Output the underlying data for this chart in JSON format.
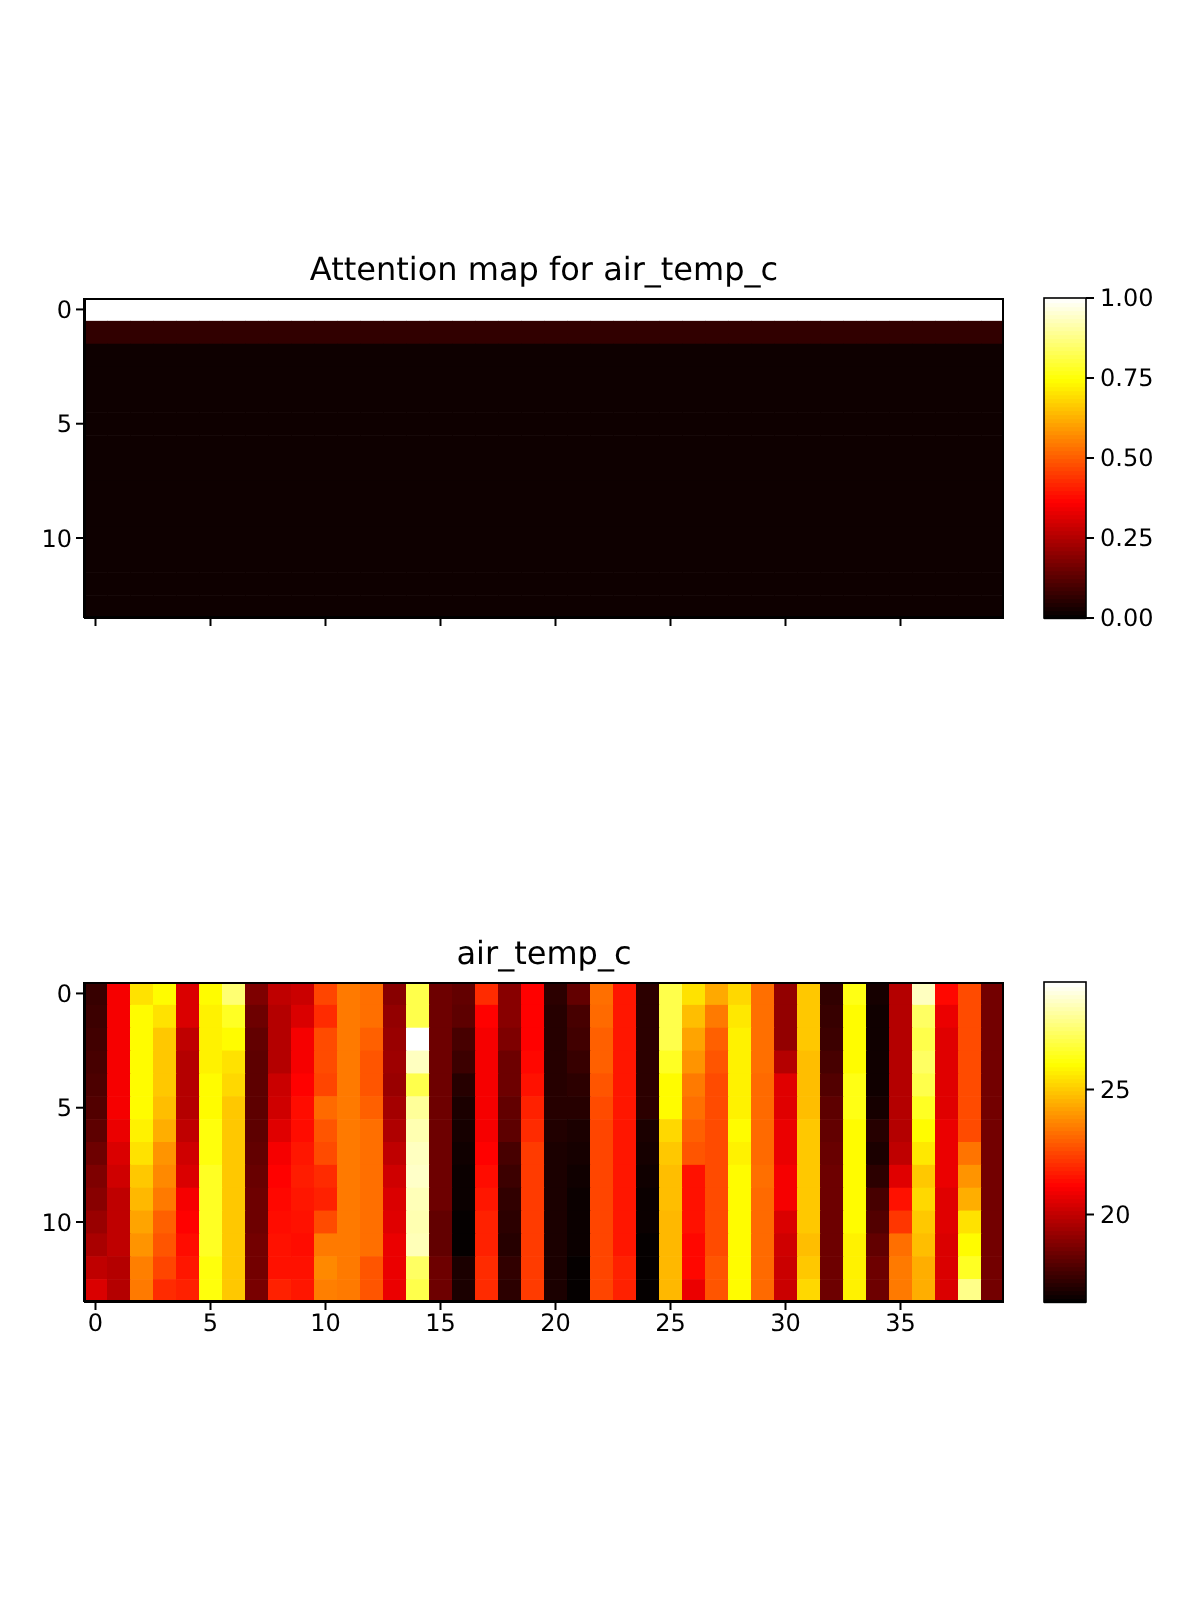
{
  "chart_data": [
    {
      "type": "heatmap",
      "title": "Attention map for air_temp_c",
      "categories": [
        "0",
        null,
        null,
        null,
        null,
        "5",
        null,
        null,
        null,
        null,
        "10",
        null,
        null,
        null,
        null,
        "15",
        null,
        null,
        null,
        null,
        "20",
        null,
        null,
        null,
        null,
        "25",
        null,
        null,
        null,
        null,
        "30",
        null,
        null,
        null,
        null,
        "35",
        null,
        null,
        null,
        null
      ],
      "y_categories": [
        "0",
        null,
        null,
        null,
        null,
        "5",
        null,
        null,
        null,
        null,
        "10",
        null,
        null,
        null
      ],
      "tick_labels": "y",
      "clim": [
        0,
        1
      ],
      "cticks": [
        {
          "value": 0,
          "label": "0.00"
        },
        {
          "value": 0.25,
          "label": "0.25"
        },
        {
          "value": 0.5,
          "label": "0.50"
        },
        {
          "value": 0.75,
          "label": "0.75"
        },
        {
          "value": 1,
          "label": "1.00"
        }
      ],
      "cells": [
        [
          1,
          1,
          1,
          1,
          1,
          1,
          1,
          1,
          1,
          1,
          1,
          1,
          1,
          1,
          1,
          1,
          1,
          1,
          1,
          1,
          1,
          1,
          1,
          1,
          1,
          1,
          1,
          1,
          1,
          1,
          1,
          1,
          1,
          1,
          1,
          1,
          1,
          1,
          1,
          1
        ],
        [
          0.07,
          0.07,
          0.07,
          0.07,
          0.07,
          0.07,
          0.07,
          0.07,
          0.07,
          0.07,
          0.07,
          0.07,
          0.07,
          0.07,
          0.07,
          0.07,
          0.07,
          0.07,
          0.07,
          0.07,
          0.07,
          0.07,
          0.07,
          0.07,
          0.07,
          0.07,
          0.07,
          0.07,
          0.07,
          0.07,
          0.07,
          0.07,
          0.07,
          0.07,
          0.07,
          0.07,
          0.07,
          0.07,
          0.07,
          0.07
        ],
        [
          0.02,
          0.02,
          0.02,
          0.02,
          0.02,
          0.02,
          0.02,
          0.02,
          0.02,
          0.02,
          0.02,
          0.02,
          0.02,
          0.02,
          0.02,
          0.02,
          0.02,
          0.02,
          0.02,
          0.02,
          0.02,
          0.02,
          0.02,
          0.02,
          0.02,
          0.02,
          0.02,
          0.02,
          0.02,
          0.02,
          0.02,
          0.02,
          0.02,
          0.02,
          0.02,
          0.02,
          0.02,
          0.02,
          0.02,
          0.02
        ],
        [
          0.02,
          0.02,
          0.02,
          0.02,
          0.02,
          0.02,
          0.02,
          0.02,
          0.02,
          0.02,
          0.02,
          0.02,
          0.02,
          0.02,
          0.02,
          0.02,
          0.02,
          0.02,
          0.02,
          0.02,
          0.02,
          0.02,
          0.02,
          0.02,
          0.02,
          0.02,
          0.02,
          0.02,
          0.02,
          0.02,
          0.02,
          0.02,
          0.02,
          0.02,
          0.02,
          0.02,
          0.02,
          0.02,
          0.02,
          0.02
        ],
        [
          0.02,
          0.02,
          0.02,
          0.02,
          0.02,
          0.02,
          0.02,
          0.02,
          0.02,
          0.02,
          0.02,
          0.02,
          0.02,
          0.02,
          0.02,
          0.02,
          0.02,
          0.02,
          0.02,
          0.02,
          0.02,
          0.02,
          0.02,
          0.02,
          0.02,
          0.02,
          0.02,
          0.02,
          0.02,
          0.02,
          0.02,
          0.02,
          0.02,
          0.02,
          0.02,
          0.02,
          0.02,
          0.02,
          0.02,
          0.02
        ],
        [
          0.02,
          0.02,
          0.02,
          0.02,
          0.02,
          0.02,
          0.02,
          0.02,
          0.02,
          0.02,
          0.02,
          0.02,
          0.02,
          0.02,
          0.02,
          0.02,
          0.02,
          0.02,
          0.02,
          0.02,
          0.02,
          0.02,
          0.02,
          0.02,
          0.02,
          0.02,
          0.02,
          0.02,
          0.02,
          0.02,
          0.02,
          0.02,
          0.02,
          0.02,
          0.02,
          0.02,
          0.02,
          0.02,
          0.02,
          0.02
        ],
        [
          0.02,
          0.02,
          0.02,
          0.02,
          0.02,
          0.02,
          0.02,
          0.02,
          0.02,
          0.02,
          0.02,
          0.02,
          0.02,
          0.02,
          0.02,
          0.02,
          0.02,
          0.02,
          0.02,
          0.02,
          0.02,
          0.02,
          0.02,
          0.02,
          0.02,
          0.02,
          0.02,
          0.02,
          0.02,
          0.02,
          0.02,
          0.02,
          0.02,
          0.02,
          0.02,
          0.02,
          0.02,
          0.02,
          0.02,
          0.02
        ],
        [
          0.02,
          0.02,
          0.02,
          0.02,
          0.02,
          0.02,
          0.02,
          0.02,
          0.02,
          0.02,
          0.02,
          0.02,
          0.02,
          0.02,
          0.02,
          0.02,
          0.02,
          0.02,
          0.02,
          0.02,
          0.02,
          0.02,
          0.02,
          0.02,
          0.02,
          0.02,
          0.02,
          0.02,
          0.02,
          0.02,
          0.02,
          0.02,
          0.02,
          0.02,
          0.02,
          0.02,
          0.02,
          0.02,
          0.02,
          0.02
        ],
        [
          0.02,
          0.02,
          0.02,
          0.02,
          0.02,
          0.02,
          0.02,
          0.02,
          0.02,
          0.02,
          0.02,
          0.02,
          0.02,
          0.02,
          0.02,
          0.02,
          0.02,
          0.02,
          0.02,
          0.02,
          0.02,
          0.02,
          0.02,
          0.02,
          0.02,
          0.02,
          0.02,
          0.02,
          0.02,
          0.02,
          0.02,
          0.02,
          0.02,
          0.02,
          0.02,
          0.02,
          0.02,
          0.02,
          0.02,
          0.02
        ],
        [
          0.02,
          0.02,
          0.02,
          0.02,
          0.02,
          0.02,
          0.02,
          0.02,
          0.02,
          0.02,
          0.02,
          0.02,
          0.02,
          0.02,
          0.02,
          0.02,
          0.02,
          0.02,
          0.02,
          0.02,
          0.02,
          0.02,
          0.02,
          0.02,
          0.02,
          0.02,
          0.02,
          0.02,
          0.02,
          0.02,
          0.02,
          0.02,
          0.02,
          0.02,
          0.02,
          0.02,
          0.02,
          0.02,
          0.02,
          0.02
        ],
        [
          0.02,
          0.02,
          0.02,
          0.02,
          0.02,
          0.02,
          0.02,
          0.02,
          0.02,
          0.02,
          0.02,
          0.02,
          0.02,
          0.02,
          0.02,
          0.02,
          0.02,
          0.02,
          0.02,
          0.02,
          0.02,
          0.02,
          0.02,
          0.02,
          0.02,
          0.02,
          0.02,
          0.02,
          0.02,
          0.02,
          0.02,
          0.02,
          0.02,
          0.02,
          0.02,
          0.02,
          0.02,
          0.02,
          0.02,
          0.02
        ],
        [
          0.02,
          0.02,
          0.02,
          0.02,
          0.02,
          0.02,
          0.02,
          0.02,
          0.02,
          0.02,
          0.02,
          0.02,
          0.02,
          0.02,
          0.02,
          0.02,
          0.02,
          0.02,
          0.02,
          0.02,
          0.02,
          0.02,
          0.02,
          0.02,
          0.02,
          0.02,
          0.02,
          0.02,
          0.02,
          0.02,
          0.02,
          0.02,
          0.02,
          0.02,
          0.02,
          0.02,
          0.02,
          0.02,
          0.02,
          0.02
        ],
        [
          0.02,
          0.02,
          0.02,
          0.02,
          0.02,
          0.02,
          0.02,
          0.02,
          0.02,
          0.02,
          0.02,
          0.02,
          0.02,
          0.02,
          0.02,
          0.02,
          0.02,
          0.02,
          0.02,
          0.02,
          0.02,
          0.02,
          0.02,
          0.02,
          0.02,
          0.02,
          0.02,
          0.02,
          0.02,
          0.02,
          0.02,
          0.02,
          0.02,
          0.02,
          0.02,
          0.02,
          0.02,
          0.02,
          0.02,
          0.02
        ],
        [
          0.02,
          0.02,
          0.02,
          0.02,
          0.02,
          0.02,
          0.02,
          0.02,
          0.02,
          0.02,
          0.02,
          0.02,
          0.02,
          0.02,
          0.02,
          0.02,
          0.02,
          0.02,
          0.02,
          0.02,
          0.02,
          0.02,
          0.02,
          0.02,
          0.02,
          0.02,
          0.02,
          0.02,
          0.02,
          0.02,
          0.02,
          0.02,
          0.02,
          0.02,
          0.02,
          0.02,
          0.02,
          0.02,
          0.02,
          0.02
        ]
      ]
    },
    {
      "type": "heatmap",
      "title": "air_temp_c",
      "categories": [
        "0",
        null,
        null,
        null,
        null,
        "5",
        null,
        null,
        null,
        null,
        "10",
        null,
        null,
        null,
        null,
        "15",
        null,
        null,
        null,
        null,
        "20",
        null,
        null,
        null,
        null,
        "25",
        null,
        null,
        null,
        null,
        "30",
        null,
        null,
        null,
        null,
        "35",
        null,
        null,
        null,
        null
      ],
      "y_categories": [
        "0",
        null,
        null,
        null,
        null,
        "5",
        null,
        null,
        null,
        null,
        "10",
        null,
        null,
        null
      ],
      "clim": [
        16.5,
        29.3
      ],
      "cticks": [
        20,
        25
      ],
      "cells": [
        [
          17.5,
          21,
          25.5,
          26,
          20.5,
          26,
          27.5,
          18.8,
          20,
          20.2,
          22.5,
          23.5,
          23.3,
          19,
          27,
          18.5,
          18.3,
          22,
          19,
          21.2,
          17.3,
          18.3,
          23.3,
          21.6,
          17.3,
          27,
          25.5,
          24.4,
          25.3,
          23.3,
          19.2,
          25,
          17.4,
          26.3,
          16.9,
          19.8,
          28.5,
          21.3,
          22.6,
          18.6
        ],
        [
          17.6,
          21,
          26,
          25.5,
          20.5,
          25.8,
          26.5,
          18.5,
          19.8,
          20.5,
          22,
          23.5,
          23.3,
          19.2,
          27,
          18.5,
          18.2,
          21.2,
          19,
          21.2,
          17.2,
          17.8,
          23.2,
          21.6,
          17.3,
          27,
          24.8,
          23.5,
          25.6,
          23.3,
          19.2,
          25,
          17.5,
          26,
          16.8,
          19.8,
          27.3,
          20.8,
          22.6,
          18.6
        ],
        [
          17.7,
          21,
          26,
          25,
          20,
          25.8,
          26,
          18.3,
          19.8,
          21,
          22.6,
          23.5,
          23,
          19.3,
          29.3,
          18.5,
          17.8,
          21,
          18.8,
          21.2,
          17.2,
          17.7,
          23,
          21.6,
          17.3,
          27,
          24.3,
          23,
          25.8,
          23.3,
          19.2,
          25,
          17.6,
          26,
          16.8,
          19.8,
          27,
          20.6,
          22.6,
          18.6
        ],
        [
          17.8,
          21,
          26,
          25,
          19.8,
          25.8,
          25.5,
          18.2,
          19.8,
          21,
          22.6,
          23.5,
          22.8,
          19.4,
          28.5,
          18.5,
          17.6,
          21,
          18.5,
          21.3,
          17.2,
          17.5,
          23,
          21.6,
          17.3,
          26.5,
          24,
          22.8,
          25.8,
          23.3,
          19.8,
          24.8,
          17.8,
          26,
          16.8,
          19.8,
          27.3,
          20.6,
          22.6,
          18.6
        ],
        [
          17.9,
          21,
          26,
          25,
          19.8,
          26,
          25.3,
          18.2,
          20.2,
          21.2,
          22.5,
          23.5,
          22.8,
          19.3,
          27,
          18.5,
          17.2,
          21,
          18.5,
          21.5,
          17.2,
          17.3,
          22.8,
          21.6,
          17.3,
          26,
          23.5,
          22.6,
          25.8,
          23.2,
          20.6,
          24.8,
          18,
          26.3,
          16.8,
          19.8,
          27,
          20.6,
          22.6,
          18.6
        ],
        [
          18,
          21,
          26,
          24.8,
          19.8,
          26,
          25,
          18.2,
          20.3,
          21.4,
          23.2,
          23.5,
          23,
          19.5,
          28,
          18.5,
          17,
          21,
          18.3,
          21.8,
          17.2,
          17.2,
          22.6,
          21.6,
          17.3,
          26,
          23.3,
          22.6,
          25.8,
          23.2,
          20.6,
          24.8,
          18.2,
          26.3,
          16.9,
          19.8,
          26.5,
          20.6,
          22.6,
          18.6
        ],
        [
          18.2,
          20.8,
          25.8,
          24.5,
          20,
          26.2,
          25,
          18.2,
          20.6,
          21.4,
          22.8,
          23.5,
          23.3,
          19.7,
          28.3,
          18.5,
          16.9,
          21,
          18.2,
          22,
          17.1,
          17,
          22.5,
          21.6,
          17,
          25.3,
          23,
          22.6,
          26,
          23.2,
          20.8,
          25,
          18.3,
          26,
          17.2,
          19.8,
          26,
          20.8,
          22.6,
          18.6
        ],
        [
          18.5,
          20.5,
          25.5,
          24,
          20.3,
          26.2,
          25,
          18.3,
          21,
          21.6,
          22.6,
          23.5,
          23.3,
          20,
          28.5,
          18.5,
          16.8,
          21.2,
          17.8,
          22.3,
          17,
          16.9,
          22.5,
          21.6,
          16.9,
          25,
          22.8,
          22.6,
          25.8,
          23.2,
          20.8,
          25,
          18.4,
          26,
          17,
          20,
          25.6,
          20.8,
          23.4,
          18.6
        ],
        [
          18.8,
          20.3,
          25,
          23.8,
          20.5,
          26.5,
          25,
          18.4,
          21.2,
          21.7,
          22,
          23.5,
          23.3,
          20.3,
          28.6,
          18.5,
          16.7,
          21.4,
          17.6,
          22.3,
          17,
          16.8,
          22.5,
          21.6,
          16.8,
          24.8,
          21.5,
          22.6,
          26,
          23.3,
          21,
          25,
          18.5,
          26,
          17.3,
          20.6,
          25,
          20.8,
          24,
          18.6
        ],
        [
          19,
          20,
          24.7,
          23.5,
          21,
          26.5,
          25,
          18.5,
          21.3,
          21.6,
          21.8,
          23.5,
          23.3,
          20.5,
          28.4,
          18.5,
          16.7,
          21.6,
          17.4,
          22.3,
          17,
          16.7,
          22.5,
          21.6,
          16.7,
          24.8,
          21.5,
          22.6,
          26,
          23.2,
          21,
          25,
          18.5,
          26,
          17.8,
          21.5,
          25.3,
          20.6,
          24.5,
          18.6
        ],
        [
          19.3,
          20,
          24.3,
          23,
          21.2,
          26.5,
          25,
          18.5,
          21.4,
          21.5,
          22.6,
          23.5,
          23.3,
          20.6,
          28.3,
          18.3,
          16.6,
          21.8,
          17.3,
          22.3,
          17,
          16.7,
          22.5,
          21.6,
          16.7,
          24.7,
          21.5,
          22.6,
          26,
          23.2,
          20.5,
          25,
          18.5,
          26,
          18,
          22.2,
          25,
          20.6,
          25.5,
          18.6
        ],
        [
          19.6,
          20,
          24,
          22.8,
          21.4,
          26.5,
          25,
          18.6,
          21.5,
          21.4,
          23.5,
          23.5,
          23.3,
          20.8,
          28.4,
          18.3,
          16.6,
          21.8,
          17.2,
          22.3,
          17,
          16.7,
          22.5,
          21.6,
          16.6,
          24.7,
          21.3,
          22.6,
          26,
          23.2,
          20.3,
          24.8,
          18.5,
          25.8,
          18.3,
          23.3,
          24.8,
          20.5,
          26,
          18.6
        ],
        [
          20,
          19.8,
          23.6,
          22.5,
          21.6,
          26.2,
          25,
          18.6,
          21.5,
          21.5,
          23.8,
          23.5,
          22.8,
          20.8,
          27.3,
          18.5,
          17,
          22,
          17.4,
          22.3,
          17,
          16.6,
          22.5,
          21.8,
          16.6,
          24.7,
          21.3,
          22.8,
          26,
          23.2,
          20.2,
          25,
          18.5,
          25.8,
          18.5,
          23.5,
          24.5,
          20.5,
          26.5,
          18.6
        ],
        [
          20.5,
          19.8,
          23.5,
          22,
          21.8,
          26.2,
          25,
          18.7,
          21.8,
          21.6,
          23.6,
          23.5,
          22.8,
          20.8,
          27,
          18.5,
          17,
          22,
          17.3,
          22.3,
          17,
          16.6,
          22.5,
          21.8,
          16.6,
          24.7,
          20.8,
          22.8,
          26,
          23.2,
          20.2,
          25.3,
          18.5,
          25.8,
          18.5,
          23.5,
          24.5,
          20.5,
          27.8,
          18.6
        ]
      ]
    }
  ]
}
